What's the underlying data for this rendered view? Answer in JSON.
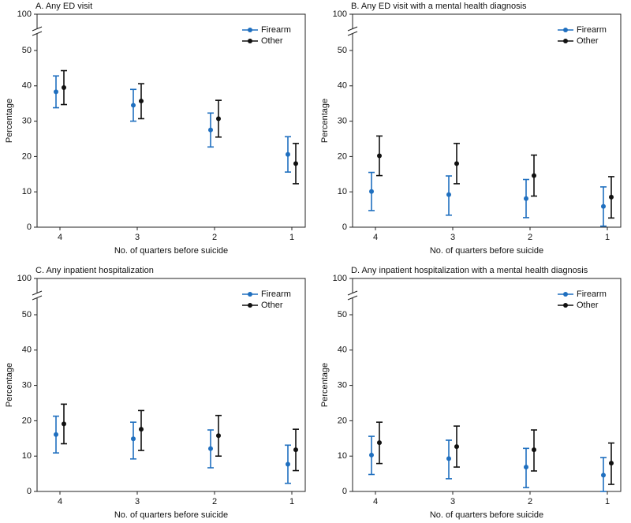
{
  "chart_data": [
    {
      "type": "errorbar",
      "title": "A. Any ED visit",
      "xlabel": "No. of quarters before suicide",
      "ylabel": "Percentage",
      "categories": [
        "4",
        "3",
        "2",
        "1"
      ],
      "ylim": [
        0,
        100
      ],
      "yticks": [
        0,
        10,
        20,
        30,
        40,
        50,
        100
      ],
      "axis_break": true,
      "legend": "upper right",
      "series": [
        {
          "name": "Firearm",
          "color": "#1f6fbf",
          "values": [
            38.3,
            34.5,
            27.5,
            20.6
          ],
          "lower": [
            33.8,
            30.0,
            22.7,
            15.6
          ],
          "upper": [
            42.8,
            39.0,
            32.3,
            25.6
          ]
        },
        {
          "name": "Other",
          "color": "#111111",
          "values": [
            39.5,
            35.7,
            30.7,
            18.0
          ],
          "lower": [
            34.7,
            30.7,
            25.5,
            12.3
          ],
          "upper": [
            44.3,
            40.6,
            35.9,
            23.7
          ]
        }
      ]
    },
    {
      "type": "errorbar",
      "title": "B. Any ED visit with a mental health diagnosis",
      "xlabel": "No. of quarters before suicide",
      "ylabel": "Percentage",
      "categories": [
        "4",
        "3",
        "2",
        "1"
      ],
      "ylim": [
        0,
        100
      ],
      "yticks": [
        0,
        10,
        20,
        30,
        40,
        50,
        100
      ],
      "axis_break": true,
      "legend": "upper right",
      "series": [
        {
          "name": "Firearm",
          "color": "#1f6fbf",
          "values": [
            10.1,
            9.2,
            8.1,
            5.9
          ],
          "lower": [
            4.7,
            3.4,
            2.7,
            0.3
          ],
          "upper": [
            15.5,
            14.5,
            13.5,
            11.4
          ]
        },
        {
          "name": "Other",
          "color": "#111111",
          "values": [
            20.2,
            18.0,
            14.6,
            8.5
          ],
          "lower": [
            14.6,
            12.3,
            8.8,
            2.6
          ],
          "upper": [
            25.8,
            23.7,
            20.4,
            14.3
          ]
        }
      ]
    },
    {
      "type": "errorbar",
      "title": "C. Any inpatient hospitalization",
      "xlabel": "No. of quarters before suicide",
      "ylabel": "Percentage",
      "categories": [
        "4",
        "3",
        "2",
        "1"
      ],
      "ylim": [
        0,
        100
      ],
      "yticks": [
        0,
        10,
        20,
        30,
        40,
        50,
        100
      ],
      "axis_break": true,
      "legend": "upper right",
      "series": [
        {
          "name": "Firearm",
          "color": "#1f6fbf",
          "values": [
            16.1,
            14.9,
            12.1,
            7.7
          ],
          "lower": [
            10.9,
            9.2,
            6.7,
            2.3
          ],
          "upper": [
            21.3,
            19.6,
            17.4,
            13.1
          ]
        },
        {
          "name": "Other",
          "color": "#111111",
          "values": [
            19.1,
            17.6,
            15.8,
            11.8
          ],
          "lower": [
            13.5,
            11.6,
            10.0,
            5.9
          ],
          "upper": [
            24.7,
            22.9,
            21.5,
            17.6
          ]
        }
      ]
    },
    {
      "type": "errorbar",
      "title": "D. Any inpatient hospitalization with a mental health diagnosis",
      "xlabel": "No. of quarters before suicide",
      "ylabel": "Percentage",
      "categories": [
        "4",
        "3",
        "2",
        "1"
      ],
      "ylim": [
        0,
        100
      ],
      "yticks": [
        0,
        10,
        20,
        30,
        40,
        50,
        100
      ],
      "axis_break": true,
      "legend": "upper right",
      "series": [
        {
          "name": "Firearm",
          "color": "#1f6fbf",
          "values": [
            10.3,
            9.3,
            6.9,
            4.6
          ],
          "lower": [
            4.8,
            3.6,
            1.1,
            0.0
          ],
          "upper": [
            15.6,
            14.5,
            12.2,
            9.6
          ]
        },
        {
          "name": "Other",
          "color": "#111111",
          "values": [
            13.8,
            12.7,
            11.8,
            8.0
          ],
          "lower": [
            7.9,
            6.9,
            5.8,
            2.0
          ],
          "upper": [
            19.6,
            18.5,
            17.4,
            13.7
          ]
        }
      ]
    }
  ]
}
